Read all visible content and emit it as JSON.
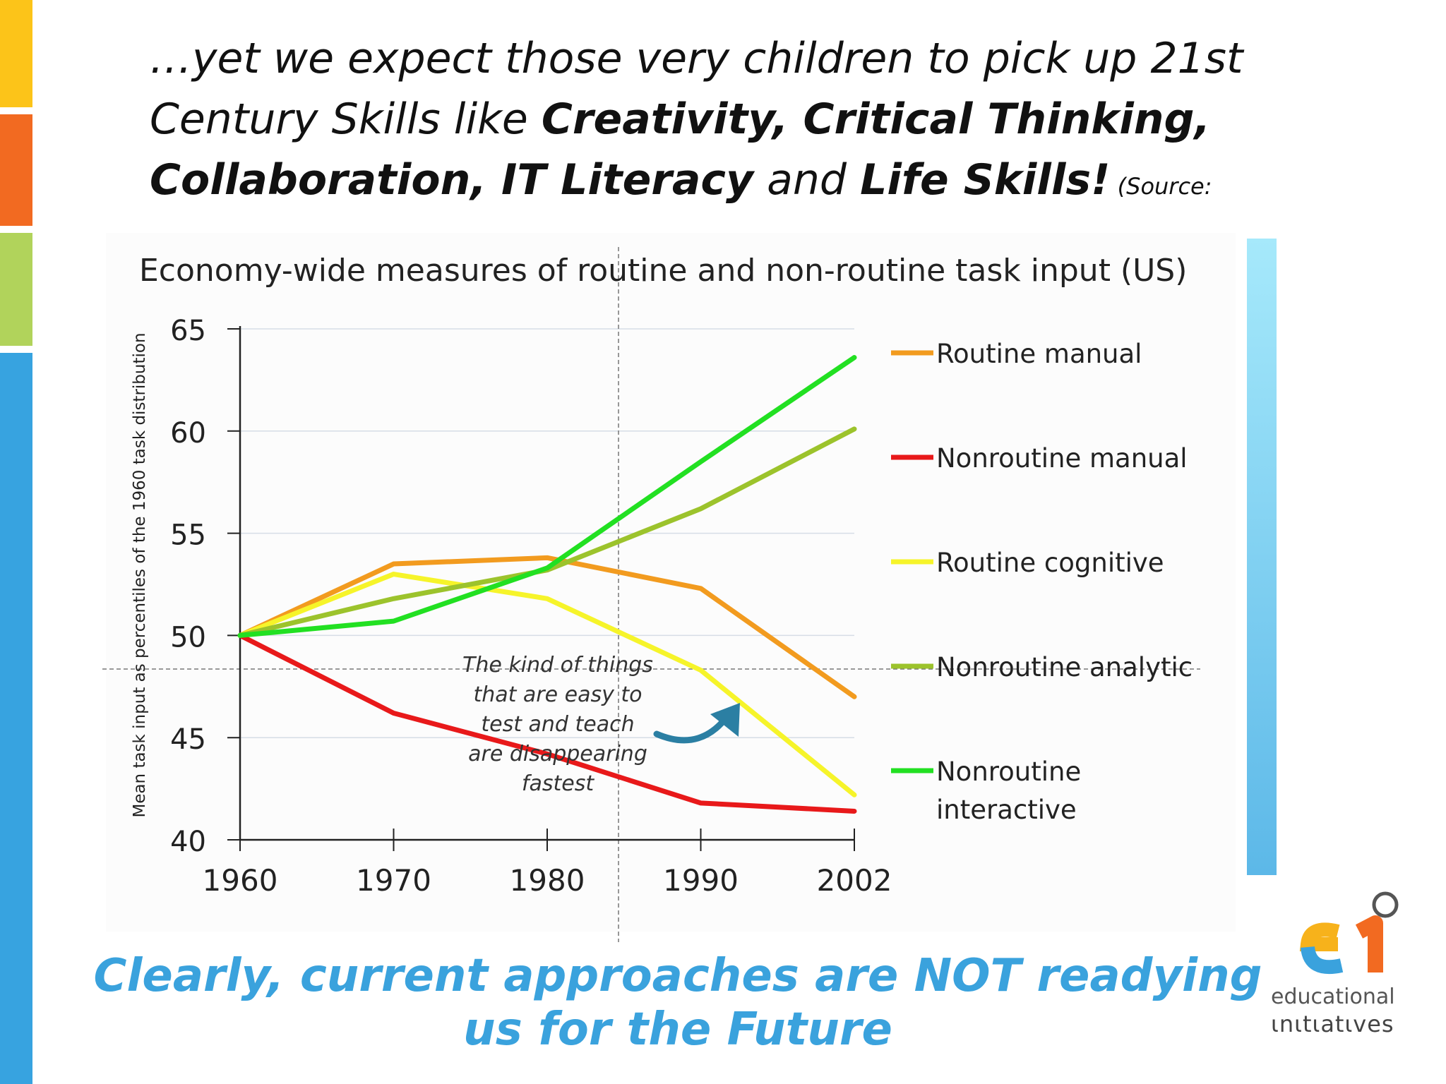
{
  "slide": {
    "heading_part1": "…yet we expect those very children to pick up 21st Century Skills like ",
    "heading_bold1": "Creativity, Critical Thinking, Collaboration, IT Literacy",
    "heading_part2": " and  ",
    "heading_bold2": "Life Skills!",
    "heading_source": " (Source: OECD)",
    "footer_line1": "Clearly, current approaches are NOT readying",
    "footer_line2": "us for the Future",
    "logo_line1": "educational",
    "logo_line2": "ιnιtιatιves",
    "colors": {
      "bar_yellow": "#fcc419",
      "bar_orange": "#f26a21",
      "bar_green": "#b1d35b",
      "bar_blue": "#37a3e0",
      "footer_blue": "#3aa2dd"
    }
  },
  "chart_data": {
    "type": "line",
    "title": "Economy-wide measures of routine and non-routine task input (US)",
    "ylabel": "Mean task input as percentiles of the 1960 task distribution",
    "xlabel": "",
    "x": [
      1960,
      1970,
      1980,
      1990,
      2002
    ],
    "x_tick_labels": [
      "1960",
      "1970",
      "1980",
      "1990",
      "2002"
    ],
    "ylim": [
      40,
      65
    ],
    "y_ticks": [
      40,
      45,
      50,
      55,
      60,
      65
    ],
    "y_tick_labels": [
      "40",
      "45",
      "50",
      "55",
      "60",
      "65"
    ],
    "grid": true,
    "legend_position": "right",
    "series": [
      {
        "name": "Routine manual",
        "color": "#f29b1f",
        "values": [
          50,
          53.5,
          53.8,
          52.3,
          47
        ]
      },
      {
        "name": "Nonroutine manual",
        "color": "#e8191a",
        "values": [
          50,
          46.2,
          44.2,
          41.8,
          41.4
        ]
      },
      {
        "name": "Routine cognitive",
        "color": "#f6f42a",
        "values": [
          50,
          53,
          51.8,
          48.3,
          42.2
        ]
      },
      {
        "name": "Nonroutine analytic",
        "color": "#9cc32c",
        "values": [
          50,
          51.8,
          53.2,
          56.2,
          60.1
        ]
      },
      {
        "name": "Nonroutine interactive",
        "color": "#22e022",
        "values": [
          50,
          50.7,
          53.3,
          58.5,
          63.6
        ]
      }
    ],
    "legend_labels": [
      [
        "Routine manual"
      ],
      [
        "Nonroutine manual"
      ],
      [
        "Routine cognitive"
      ],
      [
        "Nonroutine analytic"
      ],
      [
        "Nonroutine",
        "interactive"
      ]
    ],
    "annotation": [
      "The kind of things",
      "that are easy to",
      "test and teach",
      "are disappearing",
      "fastest"
    ]
  }
}
